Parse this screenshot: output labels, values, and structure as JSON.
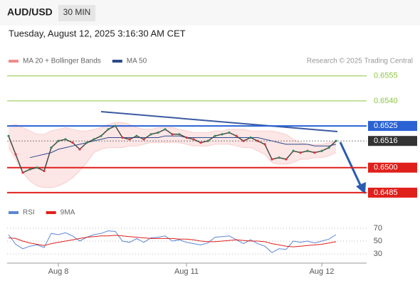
{
  "header": {
    "symbol": "AUD/USD",
    "timeframe": "30 MIN",
    "timestamp": "Tuesday, August 12, 2025 3:16:30 AM CET",
    "credit": "Research © 2025 Trading Central"
  },
  "chart_data": [
    {
      "type": "line",
      "categories": [
        null,
        null,
        null,
        null,
        null,
        null,
        null,
        "Aug 8",
        null,
        null,
        null,
        null,
        null,
        null,
        null,
        null,
        null,
        null,
        null,
        null,
        null,
        null,
        null,
        null,
        null,
        "Aug 11",
        null,
        null,
        null,
        null,
        null,
        null,
        null,
        null,
        null,
        null,
        null,
        null,
        null,
        null,
        null,
        null,
        null,
        null,
        "Aug 12",
        null,
        null
      ],
      "values": [
        0.6519,
        0.6508,
        0.6497,
        0.6499,
        0.65,
        0.6498,
        0.6512,
        0.6516,
        0.6517,
        0.6515,
        0.6511,
        0.6515,
        0.6517,
        0.6519,
        0.6523,
        0.6525,
        0.6518,
        0.6517,
        0.6519,
        0.6517,
        0.652,
        0.6521,
        0.6523,
        0.652,
        0.652,
        0.6518,
        0.6517,
        0.6515,
        0.6516,
        0.6519,
        0.652,
        0.6521,
        0.6519,
        0.6516,
        0.6518,
        0.6516,
        0.6514,
        0.6505,
        0.6506,
        0.6505,
        0.651,
        0.6509,
        0.651,
        0.6509,
        0.651,
        0.6512,
        0.6516
      ],
      "color": "#4a4a4a",
      "ylim": [
        0.6479,
        0.656
      ],
      "series": [
        {
          "name": "MA 20 + Bollinger Bands",
          "color": "#f08c8c",
          "upper": [
            0.6525,
            0.6526,
            0.6524,
            0.6522,
            0.652,
            0.652,
            0.6522,
            0.6523,
            0.6524,
            0.6523,
            0.6522,
            0.6522,
            0.6523,
            0.6524,
            0.6526,
            0.6527,
            0.6527,
            0.6526,
            0.6524,
            0.6523,
            0.6523,
            0.6524,
            0.6524,
            0.6524,
            0.6523,
            0.6522,
            0.6521,
            0.6521,
            0.6521,
            0.6522,
            0.6522,
            0.6523,
            0.6523,
            0.6523,
            0.6522,
            0.6522,
            0.6522,
            0.6522,
            0.6521,
            0.652,
            0.6517,
            0.6515,
            0.6514,
            0.6514,
            0.6514,
            0.6515,
            0.6516
          ],
          "lower": [
            0.6512,
            0.6505,
            0.6497,
            0.6492,
            0.6489,
            0.6488,
            0.6488,
            0.6489,
            0.6491,
            0.6494,
            0.6498,
            0.6503,
            0.6509,
            0.6511,
            0.6512,
            0.6512,
            0.6512,
            0.6513,
            0.6513,
            0.6514,
            0.6515,
            0.6515,
            0.6515,
            0.6515,
            0.6515,
            0.6514,
            0.6513,
            0.6513,
            0.6513,
            0.6514,
            0.6514,
            0.6514,
            0.6513,
            0.6512,
            0.6512,
            0.651,
            0.6508,
            0.6503,
            0.6502,
            0.6502,
            0.6503,
            0.6505,
            0.6505,
            0.6506,
            0.6506,
            0.6507,
            0.6509
          ]
        },
        {
          "name": "MA 50",
          "color": "#2b4a8b",
          "values": [
            null,
            null,
            null,
            0.6506,
            0.6507,
            0.6508,
            0.6509,
            0.6511,
            0.6512,
            0.6513,
            0.6514,
            0.6515,
            0.6516,
            0.6517,
            0.6518,
            0.6518,
            0.6518,
            0.6518,
            0.6518,
            0.6518,
            0.6518,
            0.6518,
            0.6519,
            0.6519,
            0.6519,
            0.6518,
            0.6518,
            0.6518,
            0.6518,
            0.6518,
            0.6518,
            0.6518,
            0.6518,
            0.6518,
            0.6518,
            0.6518,
            0.6517,
            0.6516,
            0.6515,
            0.6514,
            0.6514,
            0.6514,
            0.6514,
            0.6513,
            0.6513,
            0.6513,
            0.6514
          ]
        }
      ],
      "levels": [
        {
          "value": 0.6555,
          "label": "0.6555",
          "color": "#8cc63f",
          "boxed": false
        },
        {
          "value": 0.654,
          "label": "0.6540",
          "color": "#8cc63f",
          "boxed": false
        },
        {
          "value": 0.6525,
          "label": "0.6525",
          "color": "#2a62d4",
          "boxed": true
        },
        {
          "value": 0.6516,
          "label": "0.6516",
          "color": "#333333",
          "boxed": true
        },
        {
          "value": 0.65,
          "label": "0.6500",
          "color": "#e0201b",
          "boxed": true
        },
        {
          "value": 0.6485,
          "label": "0.6485",
          "color": "#e0201b",
          "boxed": true
        }
      ]
    },
    {
      "type": "line",
      "ylim": [
        20,
        80
      ],
      "yticks": [
        70,
        50,
        30
      ],
      "series": [
        {
          "name": "RSI",
          "color": "#5b86d6",
          "values": [
            60,
            45,
            38,
            42,
            44,
            40,
            62,
            60,
            63,
            58,
            50,
            56,
            60,
            62,
            66,
            65,
            50,
            48,
            54,
            48,
            55,
            56,
            58,
            50,
            52,
            48,
            46,
            44,
            47,
            56,
            57,
            58,
            52,
            46,
            52,
            46,
            42,
            32,
            38,
            37,
            50,
            48,
            50,
            47,
            50,
            53,
            60
          ]
        },
        {
          "name": "9MA",
          "color": "#e0201b",
          "values": [
            55,
            54,
            50,
            47,
            45,
            43,
            46,
            48,
            50,
            52,
            54,
            56,
            57,
            58,
            58,
            59,
            58,
            57,
            56,
            55,
            54,
            54,
            54,
            54,
            53,
            53,
            52,
            50,
            49,
            49,
            50,
            51,
            52,
            51,
            50,
            50,
            49,
            46,
            44,
            42,
            41,
            42,
            43,
            44,
            45,
            47,
            49
          ]
        }
      ]
    }
  ]
}
